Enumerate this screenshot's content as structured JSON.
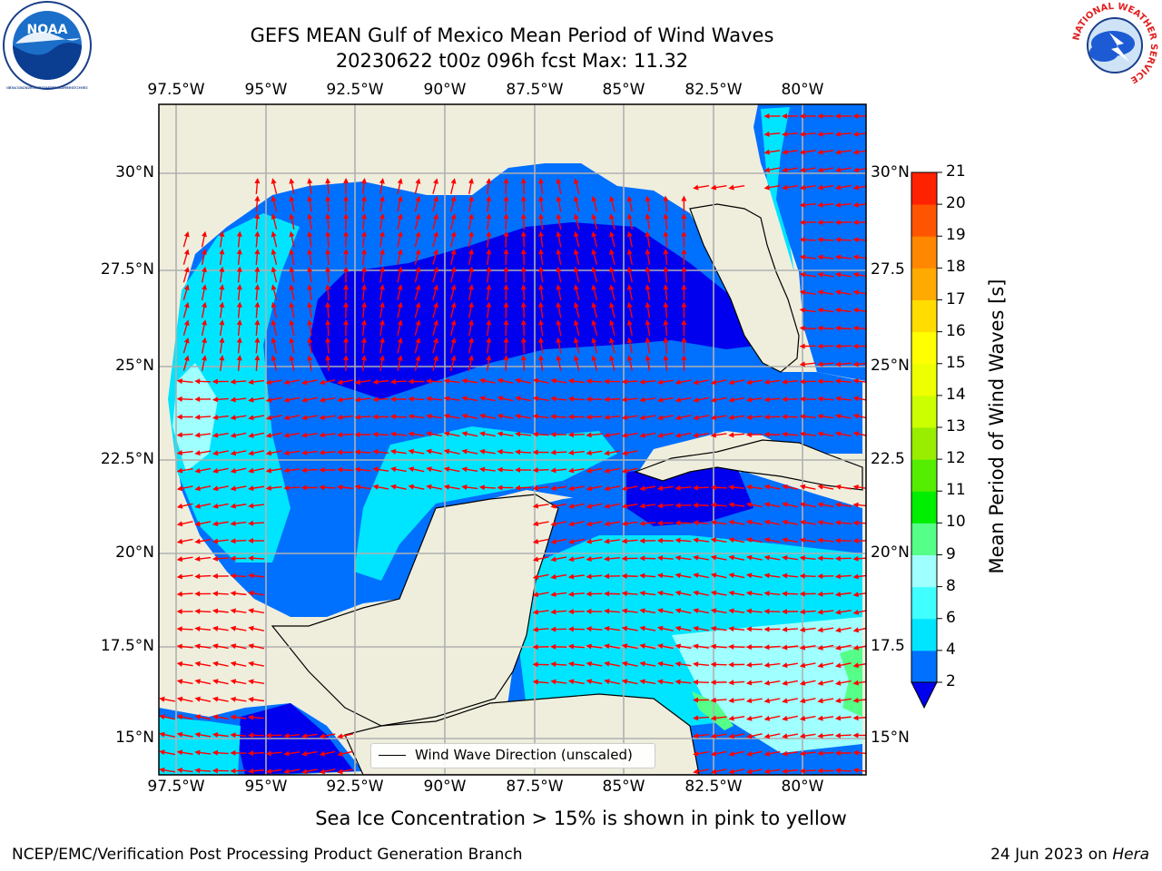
{
  "header": {
    "title_line1": "GEFS MEAN Gulf of Mexico Mean Period of Wind Waves",
    "title_line2": "20230622 t00z 096h fcst   Max: 11.32"
  },
  "logos": {
    "left": "NOAA",
    "left_ring_text": "NATIONAL OCEANIC AND ATMOSPHERIC ADMINISTRATION · U.S. DEPARTMENT OF COMMERCE",
    "right_ring_text": "NATIONAL WEATHER SERVICE"
  },
  "map": {
    "lon_ticks": [
      "97.5°W",
      "95°W",
      "92.5°W",
      "90°W",
      "87.5°W",
      "85°W",
      "82.5°W",
      "80°W"
    ],
    "lat_ticks": [
      "30°N",
      "27.5°N",
      "25°N",
      "22.5°N",
      "20°N",
      "17.5°N",
      "15°N"
    ],
    "lat_ticks_right": [
      "30°N",
      "27.5",
      "25°N",
      "22.5",
      "20°N",
      "17.5",
      "15°N"
    ],
    "lon_range": [
      -98,
      -78.3
    ],
    "lat_range": [
      14.05,
      31.75
    ],
    "gridlines": true,
    "land_color": "#efeedd",
    "vector_color": "#ff0000"
  },
  "legend": {
    "entry": "Wind Wave Direction (unscaled)",
    "placement": "bottom-center"
  },
  "colorbar": {
    "label": "Mean Period of Wind Waves [s]",
    "ticks": [
      "2",
      "4",
      "6",
      "8",
      "9",
      "10",
      "11",
      "12",
      "13",
      "14",
      "15",
      "16",
      "17",
      "18",
      "19",
      "20",
      "21"
    ],
    "colors": [
      "#0070ff",
      "#00e5ff",
      "#40ffff",
      "#a0ffff",
      "#55ff88",
      "#00ee00",
      "#55ee00",
      "#99ee00",
      "#ccff00",
      "#eeff00",
      "#ffff00",
      "#ffdd00",
      "#ffaa00",
      "#ff8800",
      "#ff5500",
      "#ff2200",
      "#ff0000"
    ],
    "under_color": "#0000ee"
  },
  "notes": {
    "sea_ice": "Sea Ice Concentration > 15% is shown in pink to yellow"
  },
  "footer": {
    "left": "NCEP/EMC/Verification Post Processing Product Generation Branch",
    "right_prefix": "24 Jun 2023 on ",
    "right_host": "Hera"
  }
}
